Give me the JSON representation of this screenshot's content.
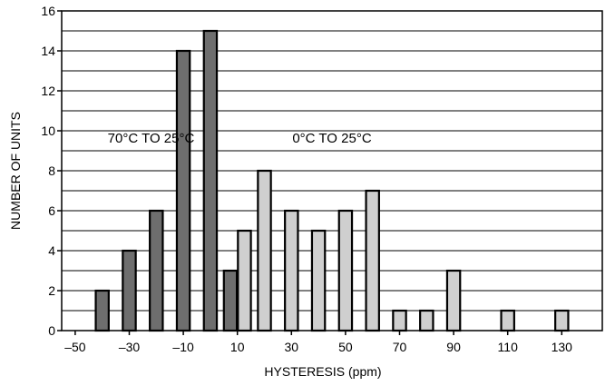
{
  "chart_data": {
    "type": "bar",
    "xlabel": "HYSTERESIS (ppm)",
    "ylabel": "NUMBER OF UNITS",
    "xlim": [
      -55,
      145
    ],
    "ylim": [
      0,
      16
    ],
    "grid": true,
    "x_ticks": [
      -50,
      -30,
      -10,
      10,
      30,
      50,
      70,
      90,
      110,
      130
    ],
    "x_tick_labels": [
      "–50",
      "–30",
      "–10",
      "10",
      "30",
      "50",
      "70",
      "90",
      "110",
      "130"
    ],
    "y_ticks": [
      0,
      2,
      4,
      6,
      8,
      10,
      12,
      14,
      16
    ],
    "y_tick_labels": [
      "0",
      "2",
      "4",
      "6",
      "8",
      "10",
      "12",
      "14",
      "16"
    ],
    "series": [
      {
        "name": "70°C TO 25°C",
        "color": "#6e6e6e",
        "x": [
          -40,
          -30,
          -20,
          -10,
          0,
          10
        ],
        "values": [
          2,
          4,
          6,
          14,
          15,
          3
        ]
      },
      {
        "name": "0°C TO 25°C",
        "color": "#cfcfcf",
        "x": [
          10,
          20,
          30,
          40,
          50,
          60,
          70,
          80,
          90,
          110,
          130
        ],
        "values": [
          5,
          8,
          6,
          5,
          6,
          7,
          1,
          1,
          3,
          1,
          1
        ]
      }
    ]
  }
}
